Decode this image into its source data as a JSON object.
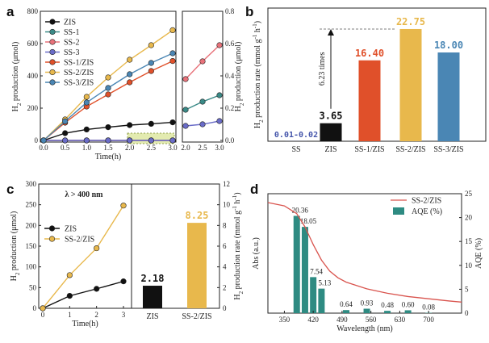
{
  "panel_labels": [
    "a",
    "b",
    "c",
    "d"
  ],
  "colors": {
    "ZIS": "#111111",
    "SS-1": "#3a8a87",
    "SS-2": "#e8727a",
    "SS-3": "#6a6cc8",
    "SS-1/ZIS": "#e0502a",
    "SS-2/ZIS": "#e8b84c",
    "SS-3/ZIS": "#4a86b4",
    "SS": "#4455aa",
    "bar_ZIS": "#111111",
    "aqe_bar": "#2e8b82",
    "abs_line": "#d9544e",
    "highlight": "#e3ebb0"
  },
  "chart_data": [
    {
      "id": "a",
      "type": "line",
      "xlabel": "Time(h)",
      "ylabel_left": "H2 production (μmol)",
      "ylabel_right": "H2 production (μmol)",
      "x": [
        0,
        0.5,
        1.0,
        1.5,
        2.0,
        2.5,
        3.0
      ],
      "xticks": [
        "0.0",
        "0.5",
        "1.0",
        "1.5",
        "2.0",
        "2.5",
        "3.0"
      ],
      "ylim": [
        0,
        800
      ],
      "yticks": [
        "0",
        "200",
        "400",
        "600",
        "800"
      ],
      "inset_xlim": [
        2.0,
        3.0
      ],
      "inset_xticks": [
        "2.0",
        "2.5",
        "3.0"
      ],
      "inset_ylim": [
        0,
        0.8
      ],
      "inset_yticks": [
        "0.0",
        "0.2",
        "0.4",
        "0.6",
        "0.8"
      ],
      "series": [
        {
          "name": "ZIS",
          "values": [
            0,
            45,
            68,
            82,
            95,
            103,
            112
          ]
        },
        {
          "name": "SS-1",
          "values": [
            0,
            0.05,
            0.1,
            0.15,
            0.19,
            0.24,
            0.28
          ]
        },
        {
          "name": "SS-2",
          "values": [
            0,
            0.08,
            0.17,
            0.28,
            0.38,
            0.49,
            0.59
          ]
        },
        {
          "name": "SS-3",
          "values": [
            0,
            0.03,
            0.05,
            0.07,
            0.09,
            0.1,
            0.12
          ]
        },
        {
          "name": "SS-1/ZIS",
          "values": [
            0,
            110,
            210,
            285,
            360,
            430,
            492
          ]
        },
        {
          "name": "SS-2/ZIS",
          "values": [
            0,
            130,
            270,
            390,
            500,
            590,
            683
          ]
        },
        {
          "name": "SS-3/ZIS",
          "values": [
            0,
            118,
            235,
            325,
            410,
            480,
            540
          ]
        }
      ],
      "inset_series": [
        "SS-1",
        "SS-2",
        "SS-3"
      ],
      "main_series": [
        "ZIS",
        "SS-1",
        "SS-2",
        "SS-3",
        "SS-1/ZIS",
        "SS-2/ZIS",
        "SS-3/ZIS"
      ],
      "legend": [
        "ZIS",
        "SS-1",
        "SS-2",
        "SS-3",
        "SS-1/ZIS",
        "SS-2/ZIS",
        "SS-3/ZIS"
      ]
    },
    {
      "id": "b",
      "type": "bar",
      "ylabel": "H2 production rate (mmol g-1 h-1)",
      "categories": [
        "SS",
        "ZIS",
        "SS-1/ZIS",
        "SS-2/ZIS",
        "SS-3/ZIS"
      ],
      "values": [
        0.015,
        3.65,
        16.4,
        22.75,
        18.0
      ],
      "data_labels": [
        "0.01-0.02",
        "3.65",
        "16.40",
        "22.75",
        "18.00"
      ],
      "ylim": [
        0,
        27
      ],
      "annotation": "6.23 times"
    },
    {
      "id": "c-line",
      "type": "line",
      "xlabel": "Time(h)",
      "ylabel": "H2 production (μmol)",
      "x": [
        0,
        1,
        2,
        3
      ],
      "xticks": [
        "0",
        "1",
        "2",
        "3"
      ],
      "ylim": [
        0,
        300
      ],
      "yticks": [
        "0",
        "50",
        "100",
        "150",
        "200",
        "250",
        "300"
      ],
      "series": [
        {
          "name": "ZIS",
          "values": [
            0,
            30,
            47,
            65
          ]
        },
        {
          "name": "SS-2/ZIS",
          "values": [
            0,
            80,
            145,
            248
          ]
        }
      ],
      "legend": [
        "ZIS",
        "SS-2/ZIS"
      ],
      "annotation": "λ > 400 nm"
    },
    {
      "id": "c-bar",
      "type": "bar",
      "ylabel": "H2 production rate (mmol g-1 h-1)",
      "categories": [
        "ZIS",
        "SS-2/ZIS"
      ],
      "values": [
        2.18,
        8.25
      ],
      "data_labels": [
        "2.18",
        "8.25"
      ],
      "ylim": [
        0,
        12
      ],
      "yticks": [
        "0",
        "2",
        "4",
        "6",
        "8",
        "10",
        "12"
      ]
    },
    {
      "id": "d",
      "type": "bar",
      "xlabel": "Wavelength (nm)",
      "ylabel_left": "Abs (a.u.)",
      "ylabel_right": "AQE (%)",
      "xlim": [
        310,
        780
      ],
      "xticks": [
        "350",
        "420",
        "490",
        "560",
        "630",
        "700"
      ],
      "xtick_values": [
        350,
        420,
        490,
        560,
        630,
        700
      ],
      "ylim_right": [
        0,
        25
      ],
      "yticks_right": [
        "0",
        "5",
        "10",
        "15",
        "20",
        "25"
      ],
      "line_series": {
        "name": "SS-2/ZIS",
        "x": [
          310,
          350,
          380,
          400,
          420,
          440,
          460,
          480,
          500,
          550,
          600,
          650,
          700,
          750,
          780
        ],
        "y": [
          1.0,
          0.97,
          0.9,
          0.78,
          0.62,
          0.48,
          0.38,
          0.32,
          0.28,
          0.22,
          0.18,
          0.15,
          0.13,
          0.11,
          0.1
        ]
      },
      "bar_series": {
        "name": "AQE (%)",
        "x": [
          380,
          400,
          420,
          440,
          500,
          550,
          600,
          650,
          700
        ],
        "values": [
          20.36,
          18.05,
          7.54,
          5.13,
          0.64,
          0.93,
          0.48,
          0.6,
          0.08
        ],
        "data_labels": [
          "20.36",
          "18.05",
          "7.54",
          "5.13",
          "0.64",
          "0.93",
          "0.48",
          "0.60",
          "0.08"
        ]
      },
      "legend": [
        "SS-2/ZIS",
        "AQE (%)"
      ]
    }
  ]
}
